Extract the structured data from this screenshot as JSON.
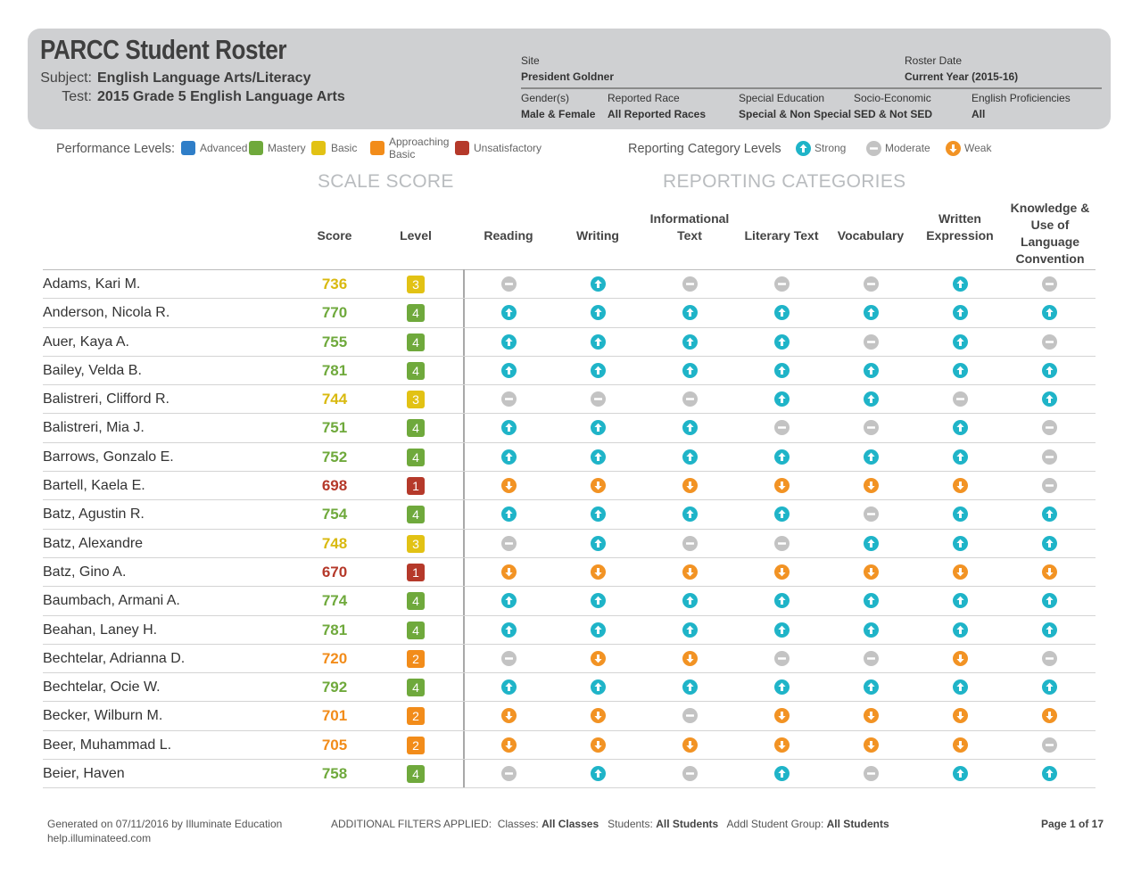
{
  "header": {
    "title": "PARCC Student Roster",
    "subject_label": "Subject:",
    "subject_value": "English Language Arts/Literacy",
    "test_label": "Test:",
    "test_value": "2015 Grade 5 English Language Arts",
    "site_label": "Site",
    "site_value": "President Goldner",
    "roster_date_label": "Roster Date",
    "roster_date_value": "Current Year (2015-16)",
    "gender_label": "Gender(s)",
    "gender_value": "Male & Female",
    "race_label": "Reported Race",
    "race_value": "All Reported Races",
    "sped_label": "Special Education",
    "sped_value": "Special & Non Special",
    "socio_label": "Socio-Economic",
    "socio_value": "SED & Not SED",
    "eng_label": "English Proficiencies",
    "eng_value": "All"
  },
  "legend": {
    "perf_title": "Performance Levels:",
    "levels": [
      {
        "label": "Advanced",
        "color": "#2f7ec8"
      },
      {
        "label": "Mastery",
        "color": "#6fa93c"
      },
      {
        "label": "Basic",
        "color": "#e2c214"
      },
      {
        "label": "Approaching",
        "label2": "Basic",
        "color": "#f28c1a"
      },
      {
        "label": "Unsatisfactory",
        "color": "#b5392a"
      }
    ],
    "cat_title": "Reporting Category Levels",
    "strong": "Strong",
    "moderate": "Moderate",
    "weak": "Weak"
  },
  "colors": {
    "level": {
      "1": "#b5392a",
      "2": "#f28c1a",
      "3": "#e2c214",
      "4": "#6fa93c"
    },
    "score": {
      "1": "#b5392a",
      "2": "#f28c1a",
      "3": "#d9b90f",
      "4": "#6fa93c"
    },
    "strong": "#1fb4c8",
    "moderate": "#c3c3c3",
    "weak": "#f29324"
  },
  "sections": {
    "scale": "SCALE SCORE",
    "reporting": "REPORTING CATEGORIES"
  },
  "columns": {
    "score": "Score",
    "level": "Level",
    "reading": "Reading",
    "writing": "Writing",
    "info": "Informational Text",
    "literary": "Literary Text",
    "vocab": "Vocabulary",
    "written": "Written Expression",
    "knowledge": "Knowledge & Use of Language Convention"
  },
  "students": [
    {
      "name": "Adams, Kari M.",
      "score": "736",
      "level": "3",
      "cats": [
        "M",
        "S",
        "M",
        "M",
        "M",
        "S",
        "M"
      ]
    },
    {
      "name": "Anderson, Nicola R.",
      "score": "770",
      "level": "4",
      "cats": [
        "S",
        "S",
        "S",
        "S",
        "S",
        "S",
        "S"
      ]
    },
    {
      "name": "Auer, Kaya A.",
      "score": "755",
      "level": "4",
      "cats": [
        "S",
        "S",
        "S",
        "S",
        "M",
        "S",
        "M"
      ]
    },
    {
      "name": "Bailey, Velda B.",
      "score": "781",
      "level": "4",
      "cats": [
        "S",
        "S",
        "S",
        "S",
        "S",
        "S",
        "S"
      ]
    },
    {
      "name": "Balistreri, Clifford R.",
      "score": "744",
      "level": "3",
      "cats": [
        "M",
        "M",
        "M",
        "S",
        "S",
        "M",
        "S"
      ]
    },
    {
      "name": "Balistreri, Mia J.",
      "score": "751",
      "level": "4",
      "cats": [
        "S",
        "S",
        "S",
        "M",
        "M",
        "S",
        "M"
      ]
    },
    {
      "name": "Barrows, Gonzalo E.",
      "score": "752",
      "level": "4",
      "cats": [
        "S",
        "S",
        "S",
        "S",
        "S",
        "S",
        "M"
      ]
    },
    {
      "name": "Bartell, Kaela E.",
      "score": "698",
      "level": "1",
      "cats": [
        "W",
        "W",
        "W",
        "W",
        "W",
        "W",
        "M"
      ]
    },
    {
      "name": "Batz, Agustin R.",
      "score": "754",
      "level": "4",
      "cats": [
        "S",
        "S",
        "S",
        "S",
        "M",
        "S",
        "S"
      ]
    },
    {
      "name": "Batz, Alexandre",
      "score": "748",
      "level": "3",
      "cats": [
        "M",
        "S",
        "M",
        "M",
        "S",
        "S",
        "S"
      ]
    },
    {
      "name": "Batz, Gino A.",
      "score": "670",
      "level": "1",
      "cats": [
        "W",
        "W",
        "W",
        "W",
        "W",
        "W",
        "W"
      ]
    },
    {
      "name": "Baumbach, Armani A.",
      "score": "774",
      "level": "4",
      "cats": [
        "S",
        "S",
        "S",
        "S",
        "S",
        "S",
        "S"
      ]
    },
    {
      "name": "Beahan, Laney H.",
      "score": "781",
      "level": "4",
      "cats": [
        "S",
        "S",
        "S",
        "S",
        "S",
        "S",
        "S"
      ]
    },
    {
      "name": "Bechtelar, Adrianna D.",
      "score": "720",
      "level": "2",
      "cats": [
        "M",
        "W",
        "W",
        "M",
        "M",
        "W",
        "M"
      ]
    },
    {
      "name": "Bechtelar, Ocie W.",
      "score": "792",
      "level": "4",
      "cats": [
        "S",
        "S",
        "S",
        "S",
        "S",
        "S",
        "S"
      ]
    },
    {
      "name": "Becker, Wilburn M.",
      "score": "701",
      "level": "2",
      "cats": [
        "W",
        "W",
        "M",
        "W",
        "W",
        "W",
        "W"
      ]
    },
    {
      "name": "Beer, Muhammad L.",
      "score": "705",
      "level": "2",
      "cats": [
        "W",
        "W",
        "W",
        "W",
        "W",
        "W",
        "M"
      ]
    },
    {
      "name": "Beier, Haven",
      "score": "758",
      "level": "4",
      "cats": [
        "M",
        "S",
        "M",
        "S",
        "M",
        "S",
        "S"
      ]
    }
  ],
  "footer": {
    "generated": "Generated on 07/11/2016 by Illuminate Education",
    "site": "help.illuminateed.com",
    "filters_label": "ADDITIONAL FILTERS APPLIED:",
    "classes_label": "Classes:",
    "classes_value": "All Classes",
    "students_label": "Students:",
    "students_value": "All Students",
    "group_label": "Addl Student Group:",
    "group_value": "All Students",
    "page": "Page 1 of 17"
  }
}
